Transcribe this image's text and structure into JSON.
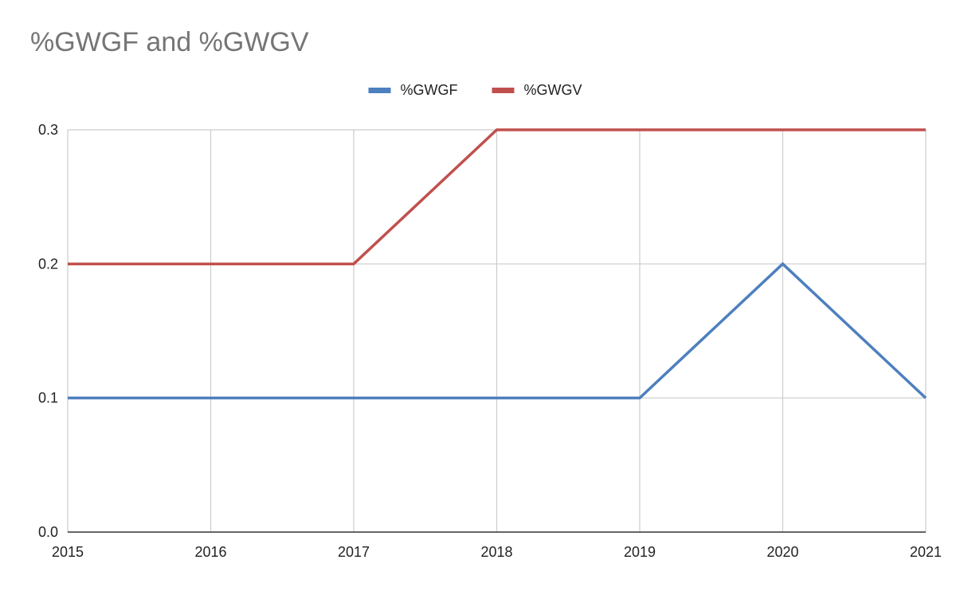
{
  "chart_data": {
    "type": "line",
    "title": "%GWGF and %GWGV",
    "x": [
      "2015",
      "2016",
      "2017",
      "2018",
      "2019",
      "2020",
      "2021"
    ],
    "series": [
      {
        "name": "%GWGF",
        "color": "#4e7fbf",
        "values": [
          0.1,
          0.1,
          0.1,
          0.1,
          0.1,
          0.2,
          0.1
        ]
      },
      {
        "name": "%GWGV",
        "color": "#c0504d",
        "values": [
          0.2,
          0.2,
          0.2,
          0.3,
          0.3,
          0.3,
          0.3
        ]
      }
    ],
    "y_ticks": [
      "0.0",
      "0.1",
      "0.2",
      "0.3"
    ],
    "ylim": [
      0,
      0.3
    ],
    "xlabel": "",
    "ylabel": "",
    "grid": true,
    "legend_position": "top-center"
  }
}
